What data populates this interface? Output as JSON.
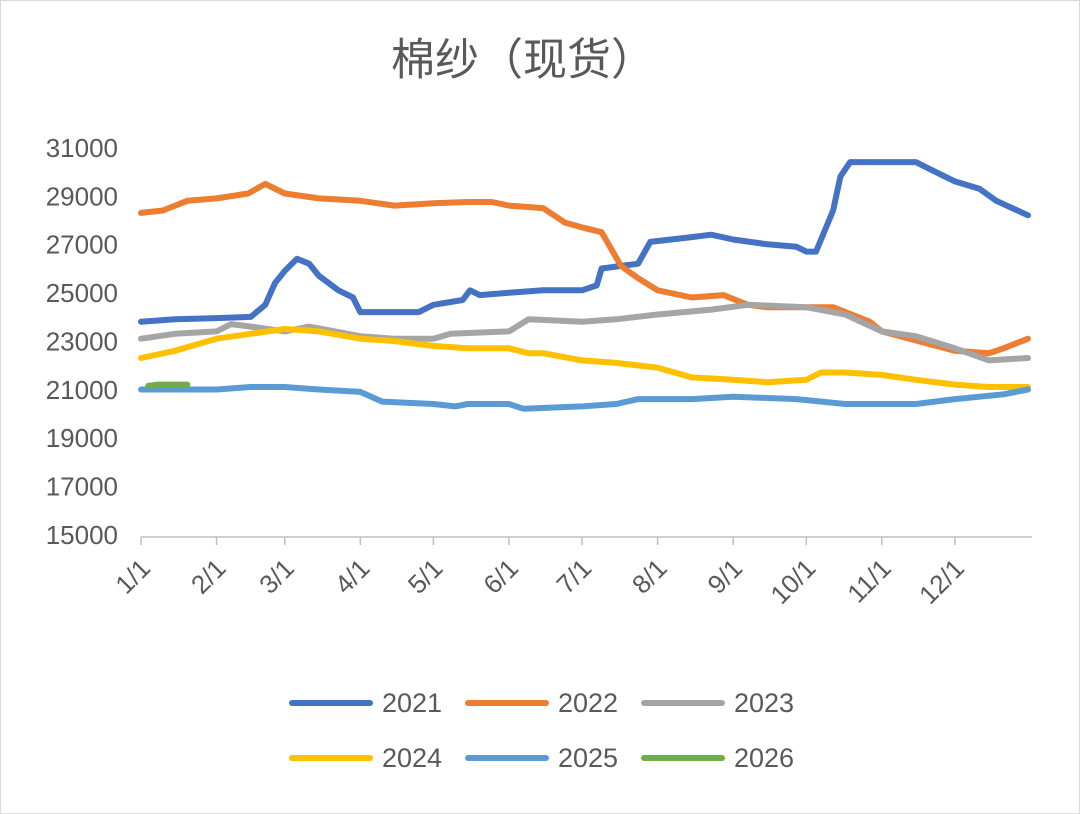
{
  "chart_data": {
    "type": "line",
    "title": "棉纱（现货）",
    "xlim": [
      1,
      365
    ],
    "xticks": [
      {
        "value": 1,
        "label": "1/1"
      },
      {
        "value": 32,
        "label": "2/1"
      },
      {
        "value": 60,
        "label": "3/1"
      },
      {
        "value": 91,
        "label": "4/1"
      },
      {
        "value": 121,
        "label": "5/1"
      },
      {
        "value": 152,
        "label": "6/1"
      },
      {
        "value": 182,
        "label": "7/1"
      },
      {
        "value": 213,
        "label": "8/1"
      },
      {
        "value": 244,
        "label": "9/1"
      },
      {
        "value": 274,
        "label": "10/1"
      },
      {
        "value": 305,
        "label": "11/1"
      },
      {
        "value": 335,
        "label": "12/1"
      }
    ],
    "ylim": [
      15000,
      31000
    ],
    "yticks": [
      15000,
      17000,
      19000,
      21000,
      23000,
      25000,
      27000,
      29000,
      31000
    ],
    "grid": false,
    "legend": "bottom",
    "series": [
      {
        "name": "2021",
        "color": "#4472c4",
        "x": [
          1,
          15,
          32,
          46,
          52,
          56,
          60,
          65,
          70,
          74,
          82,
          88,
          91,
          105,
          115,
          121,
          133,
          136,
          140,
          152,
          166,
          182,
          188,
          190,
          205,
          210,
          227,
          235,
          244,
          258,
          270,
          274,
          278,
          285,
          288,
          292,
          305,
          319,
          325,
          335,
          345,
          352,
          365
        ],
        "values": [
          23900,
          24000,
          24050,
          24100,
          24600,
          25500,
          26000,
          26500,
          26300,
          25800,
          25200,
          24900,
          24300,
          24300,
          24300,
          24600,
          24800,
          25200,
          25000,
          25100,
          25200,
          25200,
          25400,
          26100,
          26300,
          27200,
          27400,
          27500,
          27300,
          27100,
          27000,
          26800,
          26800,
          28500,
          29900,
          30500,
          30500,
          30500,
          30200,
          29700,
          29400,
          28900,
          28300
        ]
      },
      {
        "name": "2022",
        "color": "#ed7d31",
        "x": [
          1,
          10,
          20,
          32,
          45,
          52,
          60,
          74,
          91,
          105,
          121,
          135,
          145,
          152,
          166,
          175,
          182,
          190,
          198,
          205,
          213,
          227,
          240,
          250,
          258,
          274,
          285,
          300,
          305,
          320,
          335,
          349,
          355,
          365
        ],
        "values": [
          28400,
          28500,
          28900,
          29000,
          29200,
          29600,
          29200,
          29000,
          28900,
          28700,
          28800,
          28850,
          28850,
          28700,
          28600,
          28000,
          27800,
          27600,
          26200,
          25700,
          25200,
          24900,
          25000,
          24600,
          24500,
          24500,
          24500,
          23900,
          23500,
          23100,
          22700,
          22600,
          22800,
          23200
        ]
      },
      {
        "name": "2023",
        "color": "#a5a5a5",
        "x": [
          1,
          15,
          32,
          38,
          46,
          60,
          70,
          91,
          105,
          121,
          128,
          152,
          160,
          182,
          196,
          213,
          235,
          250,
          274,
          290,
          305,
          319,
          335,
          349,
          365
        ],
        "values": [
          23200,
          23400,
          23500,
          23800,
          23700,
          23500,
          23700,
          23300,
          23200,
          23200,
          23400,
          23500,
          24000,
          23900,
          24000,
          24200,
          24400,
          24600,
          24500,
          24200,
          23500,
          23300,
          22800,
          22300,
          22400
        ]
      },
      {
        "name": "2024",
        "color": "#ffc000",
        "x": [
          1,
          15,
          32,
          46,
          60,
          74,
          91,
          105,
          121,
          135,
          152,
          160,
          166,
          182,
          196,
          213,
          227,
          244,
          258,
          274,
          280,
          290,
          305,
          319,
          335,
          349,
          365
        ],
        "values": [
          22400,
          22700,
          23200,
          23400,
          23600,
          23500,
          23200,
          23100,
          22900,
          22800,
          22800,
          22600,
          22600,
          22300,
          22200,
          22000,
          21600,
          21500,
          21400,
          21500,
          21800,
          21800,
          21700,
          21500,
          21300,
          21200,
          21200
        ]
      },
      {
        "name": "2025",
        "color": "#5b9bd5",
        "x": [
          1,
          32,
          46,
          60,
          74,
          91,
          100,
          121,
          130,
          135,
          152,
          158,
          182,
          196,
          205,
          227,
          244,
          270,
          290,
          305,
          319,
          335,
          355,
          365
        ],
        "values": [
          21100,
          21100,
          21200,
          21200,
          21100,
          21000,
          20600,
          20500,
          20400,
          20500,
          20500,
          20300,
          20400,
          20500,
          20700,
          20700,
          20800,
          20700,
          20500,
          20500,
          20500,
          20700,
          20900,
          21100
        ]
      },
      {
        "name": "2026",
        "color": "#70ad47",
        "x": [
          4,
          8,
          20
        ],
        "values": [
          21250,
          21300,
          21300
        ]
      }
    ]
  }
}
